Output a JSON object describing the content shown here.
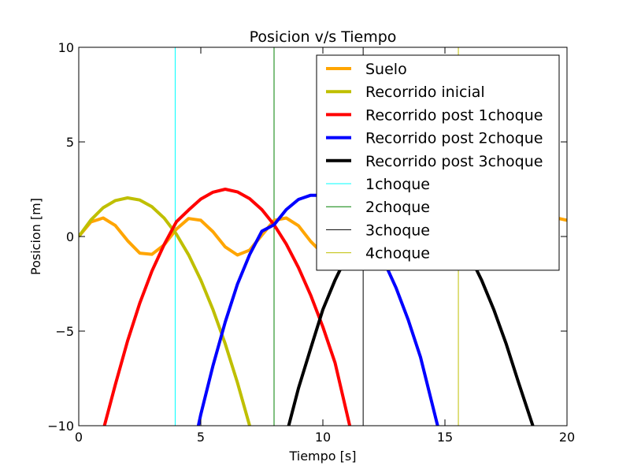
{
  "chart_data": {
    "type": "line",
    "title": "Posicion v/s Tiempo",
    "xlabel": "Tiempo [s]",
    "ylabel": "Posicion [m]",
    "xlim": [
      0,
      20
    ],
    "ylim": [
      -10,
      10
    ],
    "x_ticks": [
      0,
      5,
      10,
      15,
      20
    ],
    "y_ticks": [
      -10,
      -5,
      0,
      5,
      10
    ],
    "x_tick_labels": [
      "0",
      "5",
      "10",
      "15",
      "20"
    ],
    "y_tick_labels": [
      "−10",
      "−5",
      "0",
      "5",
      "10"
    ],
    "grid": false,
    "legend_position": "top-right",
    "series": [
      {
        "name": "Suelo",
        "color": "#ffa500",
        "x": [
          0,
          0.5,
          1,
          1.5,
          2,
          2.5,
          3,
          3.5,
          4,
          4.5,
          5,
          5.5,
          6,
          6.5,
          7,
          7.5,
          8,
          8.5,
          9,
          9.5,
          10,
          10.5,
          11,
          11.5,
          12,
          12.5,
          13,
          13.5,
          14,
          14.5,
          15,
          15.5,
          16,
          16.5,
          17,
          17.5,
          18,
          18.5,
          19,
          19.5,
          20
        ],
        "y": [
          0,
          0.77,
          0.98,
          0.58,
          -0.22,
          -0.88,
          -0.94,
          -0.44,
          0.39,
          0.95,
          0.86,
          0.25,
          -0.55,
          -0.98,
          -0.72,
          0.07,
          0.85,
          0.98,
          0.57,
          -0.26,
          -0.91,
          -0.93,
          -0.4,
          0.44,
          0.98,
          0.86,
          0.24,
          -0.58,
          -1.0,
          -0.7,
          0.1,
          0.85,
          0.98,
          0.55,
          -0.29,
          -0.93,
          -0.93,
          -0.37,
          0.48,
          1.0,
          0.86
        ]
      },
      {
        "name": "Recorrido inicial",
        "color": "#bfbf00",
        "x": [
          0,
          0.5,
          1,
          1.5,
          2,
          2.5,
          3,
          3.5,
          4,
          4.5,
          5,
          5.5,
          6,
          6.5,
          7
        ],
        "y": [
          0,
          0.88,
          1.52,
          1.9,
          2.04,
          1.93,
          1.57,
          0.97,
          0.12,
          -0.97,
          -2.3,
          -3.87,
          -5.67,
          -7.72,
          -10.0
        ]
      },
      {
        "name": "Recorrido post 1choque",
        "color": "#ff0000",
        "x": [
          1.05,
          1.5,
          2,
          2.5,
          3,
          3.5,
          4,
          4.5,
          5,
          5.5,
          6,
          6.5,
          7,
          7.5,
          8,
          8.5,
          9,
          9.5,
          10,
          10.5,
          11.1
        ],
        "y": [
          -10.0,
          -7.82,
          -5.52,
          -3.52,
          -1.82,
          -0.42,
          0.78,
          1.4,
          1.98,
          2.34,
          2.5,
          2.36,
          2.0,
          1.42,
          0.62,
          -0.4,
          -1.64,
          -3.1,
          -4.78,
          -6.68,
          -10.0
        ]
      },
      {
        "name": "Recorrido post 2choque",
        "color": "#0000ff",
        "x": [
          4.9,
          5,
          5.5,
          6,
          6.5,
          7,
          7.5,
          8,
          8.5,
          9,
          9.5,
          10,
          10.5,
          11,
          11.5,
          12,
          12.5,
          13,
          13.5,
          14,
          14.7
        ],
        "y": [
          -10.0,
          -9.4,
          -6.82,
          -4.52,
          -2.52,
          -0.96,
          0.28,
          0.62,
          1.42,
          1.96,
          2.18,
          2.18,
          1.96,
          1.48,
          0.78,
          -0.14,
          -1.3,
          -2.72,
          -4.42,
          -6.38,
          -10.0
        ]
      },
      {
        "name": "Recorrido post 3choque",
        "color": "#000000",
        "x": [
          8.6,
          9,
          9.5,
          10,
          10.5,
          11,
          11.5,
          12,
          12.5,
          13,
          13.5,
          14,
          14.5,
          15,
          15.5,
          16,
          16.5,
          17,
          17.5,
          18,
          18.6
        ],
        "y": [
          -10.0,
          -8.02,
          -5.92,
          -3.86,
          -2.3,
          -0.98,
          0.1,
          0.88,
          1.44,
          1.78,
          1.9,
          1.78,
          1.44,
          0.88,
          0.1,
          -0.98,
          -2.3,
          -3.86,
          -5.64,
          -7.66,
          -10.0
        ]
      },
      {
        "name": "1choque",
        "color": "#00ffff",
        "vertical_line_x": 3.95
      },
      {
        "name": "2choque",
        "color": "#008000",
        "vertical_line_x": 8.0
      },
      {
        "name": "3choque",
        "color": "#000000",
        "vertical_line_x": 11.65
      },
      {
        "name": "4choque",
        "color": "#bfbf00",
        "vertical_line_x": 15.55
      }
    ]
  }
}
